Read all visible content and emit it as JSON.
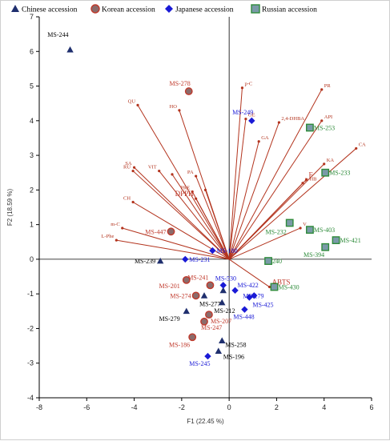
{
  "colors": {
    "chinese": "#1f2f6e",
    "korean": "#c0392b",
    "japanese": "#1a1ad6",
    "russian": "#2e8b3a",
    "loading": "#b3341e",
    "loading_text": "#b3341e",
    "big_loading_text": "#c0392b"
  },
  "legend": [
    {
      "group": "chinese",
      "label": "Chinese accession",
      "marker": "triangle"
    },
    {
      "group": "korean",
      "label": "Korean accession",
      "marker": "circle"
    },
    {
      "group": "japanese",
      "label": "Japanese accession",
      "marker": "diamond"
    },
    {
      "group": "russian",
      "label": "Russian accession",
      "marker": "square"
    }
  ],
  "chart_data": {
    "type": "scatter",
    "title": "",
    "xlabel": "F1 (22.45 %)",
    "ylabel": "F2 (18.59 %)",
    "xlim": [
      -8,
      6
    ],
    "ylim": [
      -4,
      7
    ],
    "x_ticks": [
      -8,
      -6,
      -4,
      -2,
      0,
      2,
      4,
      6
    ],
    "y_ticks": [
      -4,
      -3,
      -2,
      -1,
      0,
      1,
      2,
      3,
      4,
      5,
      6,
      7
    ],
    "grid": false,
    "legend_position": "top",
    "loadings": [
      {
        "name": "PR",
        "x": 3.9,
        "y": 4.9,
        "big": false
      },
      {
        "name": "API",
        "x": 3.9,
        "y": 4.0,
        "big": false
      },
      {
        "name": "CA",
        "x": 5.35,
        "y": 3.2,
        "big": false
      },
      {
        "name": "KA",
        "x": 4.0,
        "y": 2.75,
        "big": false
      },
      {
        "name": "2,4-DHBA",
        "x": 2.1,
        "y": 3.95,
        "big": false
      },
      {
        "name": "GA",
        "x": 1.25,
        "y": 3.4,
        "big": false
      },
      {
        "name": "GE",
        "x": 0.7,
        "y": 4.05,
        "big": false
      },
      {
        "name": "p-C",
        "x": 0.55,
        "y": 4.95,
        "big": false
      },
      {
        "name": "QU",
        "x": -3.85,
        "y": 4.45,
        "big": false
      },
      {
        "name": "HO",
        "x": -2.1,
        "y": 4.3,
        "big": false
      },
      {
        "name": "SA",
        "x": -4.0,
        "y": 2.65,
        "big": false
      },
      {
        "name": "RU",
        "x": -4.05,
        "y": 2.55,
        "big": false
      },
      {
        "name": "VIT",
        "x": -2.95,
        "y": 2.55,
        "big": false
      },
      {
        "name": "PA",
        "x": -1.4,
        "y": 2.4,
        "big": false
      },
      {
        "name": "CH",
        "x": -4.05,
        "y": 1.65,
        "big": false
      },
      {
        "name": "PRE",
        "x": -1.55,
        "y": 1.95,
        "big": false
      },
      {
        "name": "m-C",
        "x": -4.5,
        "y": 0.9,
        "big": false
      },
      {
        "name": "L-Phe",
        "x": -4.75,
        "y": 0.55,
        "big": false
      },
      {
        "name": "p-HB",
        "x": 3.1,
        "y": 2.2,
        "big": false
      },
      {
        "name": "V",
        "x": 3.0,
        "y": 0.9,
        "big": false
      },
      {
        "name": "DPPH",
        "x": -1.4,
        "y": 1.75,
        "big": true
      },
      {
        "name": "F",
        "x": 3.25,
        "y": 2.3,
        "big": true
      },
      {
        "name": "ABTS",
        "x": 1.7,
        "y": -0.8,
        "big": true
      },
      {
        "name": "",
        "x": -1.0,
        "y": 2.0,
        "big": false
      },
      {
        "name": "",
        "x": -2.4,
        "y": 2.45,
        "big": false
      }
    ],
    "series": [
      {
        "group": "chinese",
        "points": [
          {
            "label": "MS-244",
            "x": -6.7,
            "y": 6.05
          },
          {
            "label": "MS-239",
            "x": -2.9,
            "y": -0.05
          },
          {
            "label": "MS-279",
            "x": -1.8,
            "y": -1.5
          },
          {
            "label": "MS-277",
            "x": -1.05,
            "y": -1.05
          },
          {
            "label": "MS-212",
            "x": -0.3,
            "y": -1.25
          },
          {
            "label": "MS-258",
            "x": -0.3,
            "y": -2.35
          },
          {
            "label": "MS-196",
            "x": -0.45,
            "y": -2.65
          },
          {
            "label": "",
            "x": -0.25,
            "y": -0.9
          }
        ]
      },
      {
        "group": "korean",
        "points": [
          {
            "label": "MS-278",
            "x": -1.7,
            "y": 4.85
          },
          {
            "label": "MS-447",
            "x": -2.45,
            "y": 0.8
          },
          {
            "label": "MS-241",
            "x": -0.8,
            "y": -0.75
          },
          {
            "label": "MS-201",
            "x": -1.8,
            "y": -0.6
          },
          {
            "label": "MS-274",
            "x": -1.4,
            "y": -1.05
          },
          {
            "label": "MS-207",
            "x": -0.85,
            "y": -1.6
          },
          {
            "label": "MS-247",
            "x": -1.05,
            "y": -1.8
          },
          {
            "label": "MS-186",
            "x": -1.55,
            "y": -2.25
          }
        ]
      },
      {
        "group": "japanese",
        "points": [
          {
            "label": "MS-249",
            "x": 0.95,
            "y": 4.0
          },
          {
            "label": "MS-180",
            "x": -0.7,
            "y": 0.25
          },
          {
            "label": "MS-231",
            "x": -1.85,
            "y": 0.0
          },
          {
            "label": "MS-530",
            "x": -0.25,
            "y": -0.75
          },
          {
            "label": "MS-422",
            "x": 0.25,
            "y": -0.9
          },
          {
            "label": "MS-179",
            "x": 1.05,
            "y": -1.05
          },
          {
            "label": "MS-425",
            "x": 0.85,
            "y": -1.1
          },
          {
            "label": "MS-448",
            "x": 0.65,
            "y": -1.45
          },
          {
            "label": "MS-245",
            "x": -0.9,
            "y": -2.8
          }
        ]
      },
      {
        "group": "russian",
        "points": [
          {
            "label": "MS-253",
            "x": 3.4,
            "y": 3.8
          },
          {
            "label": "MS-233",
            "x": 4.05,
            "y": 2.5
          },
          {
            "label": "MS-232",
            "x": 2.55,
            "y": 1.05
          },
          {
            "label": "MS-403",
            "x": 3.4,
            "y": 0.85
          },
          {
            "label": "MS-421",
            "x": 4.5,
            "y": 0.55
          },
          {
            "label": "MS-394",
            "x": 4.05,
            "y": 0.35
          },
          {
            "label": "240",
            "x": 1.65,
            "y": -0.05
          },
          {
            "label": "MS-430",
            "x": 1.9,
            "y": -0.8
          }
        ]
      }
    ]
  }
}
